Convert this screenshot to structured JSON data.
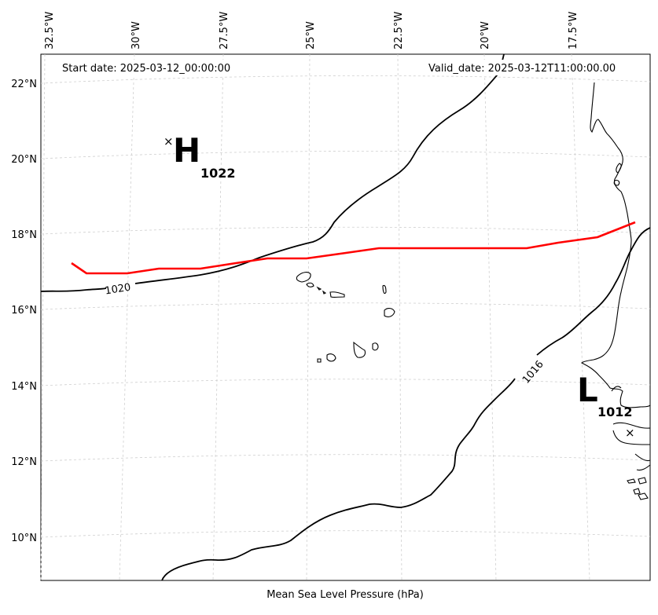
{
  "header": {
    "start_date": "Start date: 2025-03-12_00:00:00",
    "valid_date": "Valid_date: 2025-03-12T11:00:00.00"
  },
  "footer": {
    "caption": "Mean Sea Level Pressure (hPa)"
  },
  "longitude_labels": [
    "32.5°W",
    "30°W",
    "27.5°W",
    "25°W",
    "22.5°W",
    "20°W",
    "17.5°W"
  ],
  "latitude_labels": [
    "22°N",
    "20°N",
    "18°N",
    "16°N",
    "14°N",
    "12°N",
    "10°N"
  ],
  "isobars": [
    {
      "value": "1020",
      "label": "1020"
    },
    {
      "value": "1016",
      "label": "1016"
    }
  ],
  "pressure_centers": [
    {
      "type": "high",
      "letter": "H",
      "value": "1022",
      "marker": "×"
    },
    {
      "type": "low",
      "letter": "L",
      "value": "1012",
      "marker": "×"
    }
  ],
  "track": {
    "color": "#ff0000",
    "description_visible": false
  },
  "colors": {
    "isobar": "#000000",
    "track": "#ff0000",
    "grid": "#cfcfcf",
    "land": "#ffffff"
  }
}
